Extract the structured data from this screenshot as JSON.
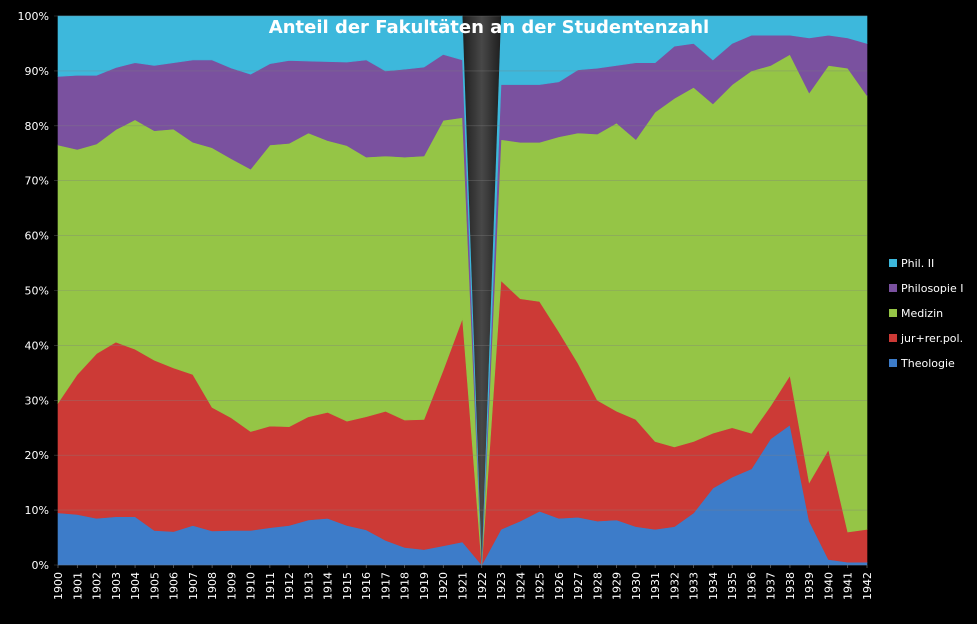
{
  "chart_data": {
    "type": "area",
    "stacked": "percent",
    "title": "Anteil der Fakultäten an der Studentenzahl",
    "x": [
      "1900",
      "1901",
      "1902",
      "1903",
      "1904",
      "1905",
      "1906",
      "1907",
      "1908",
      "1909",
      "1910",
      "1911",
      "1912",
      "1913",
      "1914",
      "1915",
      "1916",
      "1917",
      "1918",
      "1919",
      "1920",
      "1921",
      "1922",
      "1923",
      "1924",
      "1925",
      "1926",
      "1927",
      "1928",
      "1929",
      "1930",
      "1931",
      "1932",
      "1933",
      "1934",
      "1935",
      "1936",
      "1937",
      "1938",
      "1939",
      "1940",
      "1941",
      "1942"
    ],
    "y_ticks": [
      "0%",
      "10%",
      "20%",
      "30%",
      "40%",
      "50%",
      "60%",
      "70%",
      "80%",
      "90%",
      "100%"
    ],
    "ylim": [
      0,
      100
    ],
    "legend_position": "right",
    "series": [
      {
        "name": "Theologie",
        "color": "#3d7cc9",
        "values": [
          9.5,
          9.2,
          8.5,
          8.8,
          8.8,
          6.3,
          6.1,
          7.2,
          6.2,
          6.3,
          6.3,
          6.8,
          7.2,
          8.2,
          8.5,
          7.2,
          6.4,
          4.5,
          3.2,
          2.8,
          3.5,
          4.2,
          0,
          6.5,
          8.0,
          9.8,
          8.5,
          8.7,
          8.0,
          8.2,
          7.0,
          6.5,
          7.0,
          9.5,
          14.0,
          16.0,
          17.5,
          23.0,
          25.5,
          8.0,
          1.0,
          0.5,
          0.5
        ]
      },
      {
        "name": "jur+rer.pol.",
        "color": "#cc3a36",
        "values": [
          20.0,
          25.5,
          30.0,
          31.8,
          30.5,
          31.0,
          29.8,
          27.5,
          22.5,
          20.5,
          18.0,
          18.5,
          18.0,
          18.8,
          19.3,
          19.0,
          20.6,
          23.5,
          23.2,
          23.7,
          32.0,
          40.7,
          0,
          45.3,
          40.5,
          38.2,
          34.0,
          28.0,
          22.0,
          19.8,
          19.5,
          16.0,
          14.5,
          13.0,
          10.0,
          9.0,
          6.5,
          6.0,
          9.0,
          7.0,
          20.0,
          5.5,
          6.0
        ]
      },
      {
        "name": "Medizin",
        "color": "#95c546",
        "values": [
          47.0,
          41.0,
          38.2,
          38.7,
          41.8,
          41.8,
          43.5,
          42.3,
          47.3,
          47.2,
          47.8,
          51.2,
          51.6,
          51.7,
          49.5,
          50.2,
          47.3,
          46.5,
          47.9,
          48.0,
          45.5,
          36.6,
          0,
          25.7,
          28.5,
          29.0,
          35.5,
          42.0,
          48.5,
          52.5,
          51.0,
          60.0,
          63.5,
          64.5,
          60.0,
          62.5,
          66.0,
          62.0,
          58.5,
          71.0,
          70.0,
          84.5,
          79.0
        ]
      },
      {
        "name": "Philosopie I",
        "color": "#7a519f",
        "values": [
          12.5,
          13.5,
          12.5,
          11.3,
          10.4,
          11.9,
          12.1,
          15.0,
          16.0,
          16.5,
          17.3,
          14.8,
          15.1,
          13.1,
          14.4,
          15.2,
          17.7,
          15.5,
          16.0,
          16.2,
          12.0,
          10.5,
          0,
          10.0,
          10.5,
          10.5,
          10.0,
          11.5,
          12.0,
          10.5,
          14.0,
          9.0,
          9.5,
          8.0,
          8.0,
          7.5,
          6.5,
          5.5,
          3.5,
          10.0,
          5.5,
          5.5,
          9.5
        ]
      },
      {
        "name": "Phil. II",
        "color": "#3db8dc",
        "values": [
          11.0,
          10.8,
          10.8,
          9.4,
          8.5,
          9.0,
          8.5,
          8.0,
          8.0,
          9.5,
          10.6,
          8.7,
          8.1,
          8.2,
          8.3,
          8.4,
          8.0,
          10.0,
          9.7,
          9.3,
          7.0,
          8.0,
          0,
          12.5,
          12.5,
          12.5,
          12.0,
          9.8,
          9.5,
          9.0,
          8.5,
          8.5,
          5.5,
          5.0,
          8.0,
          5.0,
          3.5,
          3.5,
          3.5,
          4.0,
          3.5,
          4.0,
          5.0
        ]
      }
    ]
  }
}
